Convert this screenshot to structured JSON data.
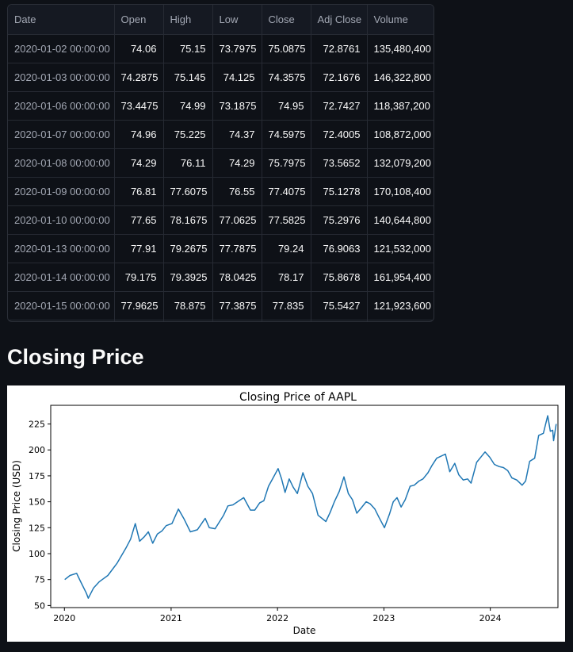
{
  "table": {
    "columns": [
      "Date",
      "Open",
      "High",
      "Low",
      "Close",
      "Adj Close",
      "Volume"
    ],
    "rows": [
      [
        "2020-01-02 00:00:00",
        "74.06",
        "75.15",
        "73.7975",
        "75.0875",
        "72.8761",
        "135,480,400"
      ],
      [
        "2020-01-03 00:00:00",
        "74.2875",
        "75.145",
        "74.125",
        "74.3575",
        "72.1676",
        "146,322,800"
      ],
      [
        "2020-01-06 00:00:00",
        "73.4475",
        "74.99",
        "73.1875",
        "74.95",
        "72.7427",
        "118,387,200"
      ],
      [
        "2020-01-07 00:00:00",
        "74.96",
        "75.225",
        "74.37",
        "74.5975",
        "72.4005",
        "108,872,000"
      ],
      [
        "2020-01-08 00:00:00",
        "74.29",
        "76.11",
        "74.29",
        "75.7975",
        "73.5652",
        "132,079,200"
      ],
      [
        "2020-01-09 00:00:00",
        "76.81",
        "77.6075",
        "76.55",
        "77.4075",
        "75.1278",
        "170,108,400"
      ],
      [
        "2020-01-10 00:00:00",
        "77.65",
        "78.1675",
        "77.0625",
        "77.5825",
        "75.2976",
        "140,644,800"
      ],
      [
        "2020-01-13 00:00:00",
        "77.91",
        "79.2675",
        "77.7875",
        "79.24",
        "76.9063",
        "121,532,000"
      ],
      [
        "2020-01-14 00:00:00",
        "79.175",
        "79.3925",
        "78.0425",
        "78.17",
        "75.8678",
        "161,954,400"
      ],
      [
        "2020-01-15 00:00:00",
        "77.9625",
        "78.875",
        "77.3875",
        "77.835",
        "75.5427",
        "121,923,600"
      ]
    ]
  },
  "section_title": "Closing Price",
  "chart_data": {
    "type": "line",
    "title": "Closing Price of AAPL",
    "xlabel": "Date",
    "ylabel": "Closing Price (USD)",
    "xlim": [
      "2019-11-15",
      "2024-08-20"
    ],
    "ylim": [
      48,
      243
    ],
    "x_ticks": [
      "2020",
      "2021",
      "2022",
      "2023",
      "2024"
    ],
    "y_ticks": [
      50,
      75,
      100,
      125,
      150,
      175,
      200,
      225
    ],
    "grid": false,
    "line_color": "#1f77b4",
    "series": [
      {
        "x": [
          "2020-01-02",
          "2020-01-20",
          "2020-02-12",
          "2020-02-24",
          "2020-03-16",
          "2020-03-23",
          "2020-04-10",
          "2020-04-30",
          "2020-05-29",
          "2020-06-30",
          "2020-07-31",
          "2020-08-15",
          "2020-08-31",
          "2020-09-15",
          "2020-09-30",
          "2020-10-15",
          "2020-10-30",
          "2020-11-15",
          "2020-12-01",
          "2020-12-15",
          "2021-01-04",
          "2021-01-26",
          "2021-02-15",
          "2021-03-08",
          "2021-04-01",
          "2021-04-28",
          "2021-05-12",
          "2021-06-01",
          "2021-06-30",
          "2021-07-15",
          "2021-08-01",
          "2021-09-07",
          "2021-09-30",
          "2021-10-15",
          "2021-11-01",
          "2021-11-15",
          "2021-12-01",
          "2021-12-15",
          "2022-01-03",
          "2022-01-15",
          "2022-01-27",
          "2022-02-10",
          "2022-02-24",
          "2022-03-10",
          "2022-03-29",
          "2022-04-15",
          "2022-05-01",
          "2022-05-20",
          "2022-06-16",
          "2022-07-01",
          "2022-07-15",
          "2022-08-01",
          "2022-08-17",
          "2022-09-01",
          "2022-09-15",
          "2022-09-30",
          "2022-10-15",
          "2022-11-01",
          "2022-11-15",
          "2022-12-01",
          "2022-12-15",
          "2023-01-03",
          "2023-01-20",
          "2023-02-02",
          "2023-02-15",
          "2023-03-01",
          "2023-03-15",
          "2023-04-01",
          "2023-04-15",
          "2023-05-01",
          "2023-05-15",
          "2023-06-01",
          "2023-06-15",
          "2023-07-01",
          "2023-07-31",
          "2023-08-15",
          "2023-09-01",
          "2023-09-15",
          "2023-09-30",
          "2023-10-15",
          "2023-10-27",
          "2023-11-15",
          "2023-12-14",
          "2023-12-30",
          "2024-01-15",
          "2024-01-31",
          "2024-02-15",
          "2024-03-01",
          "2024-03-15",
          "2024-04-01",
          "2024-04-19",
          "2024-05-01",
          "2024-05-15",
          "2024-06-01",
          "2024-06-15",
          "2024-07-01",
          "2024-07-16",
          "2024-07-25",
          "2024-08-02",
          "2024-08-05",
          "2024-08-09",
          "2024-08-14"
        ],
        "values": [
          75,
          79,
          81,
          74,
          62,
          57,
          67,
          73,
          79,
          91,
          106,
          114,
          129,
          112,
          116,
          121,
          110,
          119,
          122,
          127,
          129,
          143,
          133,
          121,
          123,
          134,
          125,
          124,
          137,
          146,
          147,
          154,
          142,
          142,
          149,
          151,
          165,
          172,
          182,
          172,
          159,
          172,
          164,
          158,
          178,
          165,
          158,
          137,
          131,
          140,
          150,
          160,
          174,
          158,
          152,
          139,
          144,
          150,
          148,
          143,
          135,
          125,
          138,
          150,
          154,
          145,
          152,
          165,
          166,
          170,
          172,
          178,
          185,
          192,
          196,
          179,
          187,
          176,
          171,
          172,
          168,
          188,
          198,
          193,
          186,
          184,
          183,
          180,
          173,
          171,
          166,
          170,
          189,
          192,
          214,
          216,
          233,
          218,
          219,
          209,
          216,
          225
        ]
      }
    ]
  }
}
